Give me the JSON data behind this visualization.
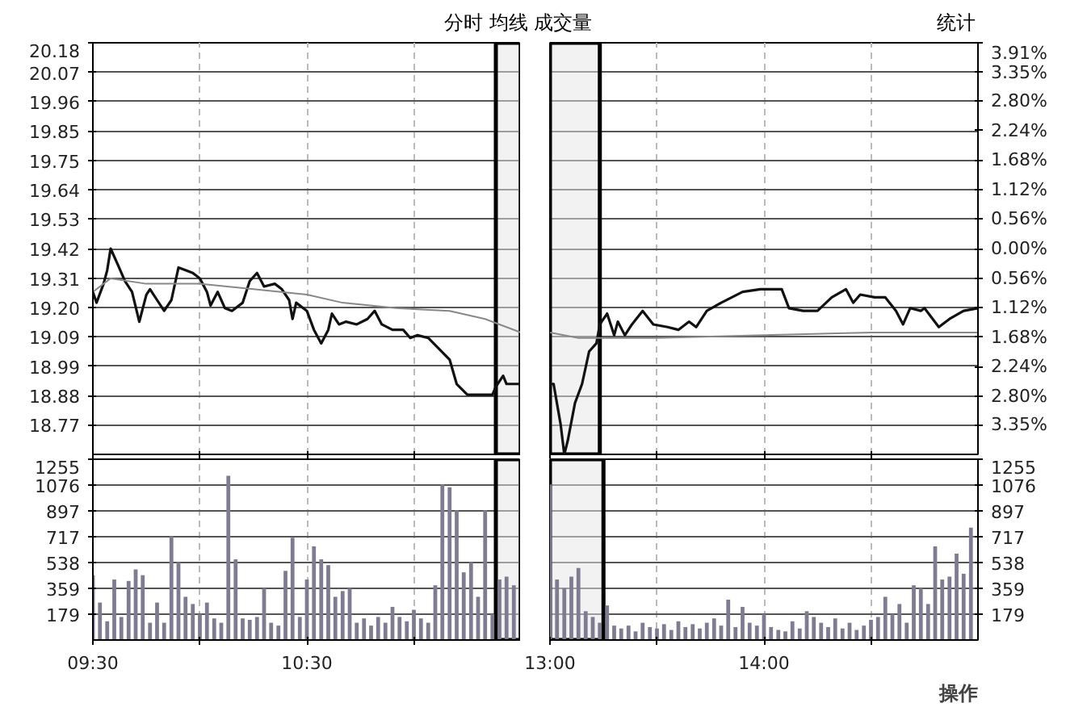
{
  "chart_data": [
    {
      "type": "line",
      "annotations": [
        "分时 均线 成交量"
      ],
      "xlim": [
        9.5,
        11.5
      ],
      "xticks": [
        {
          "value": 9.5,
          "label": null
        },
        {
          "value": 10,
          "label": null
        },
        {
          "value": 10.5,
          "label": null
        },
        {
          "value": 11,
          "label": null
        }
      ],
      "ylim": [
        18.66,
        20.18
      ],
      "yticks": [
        {
          "value": 20.18,
          "label": "20.18"
        },
        {
          "value": 20.071,
          "label": "20.07"
        },
        {
          "value": 19.963,
          "label": "19.96"
        },
        {
          "value": 19.854,
          "label": "19.85"
        },
        {
          "value": 19.746,
          "label": "19.75"
        },
        {
          "value": 19.637,
          "label": "19.64"
        },
        {
          "value": 19.529,
          "label": "19.53"
        },
        {
          "value": 19.42,
          "label": "19.42"
        },
        {
          "value": 19.311,
          "label": "19.31"
        },
        {
          "value": 19.203,
          "label": "19.20"
        },
        {
          "value": 19.094,
          "label": "19.09"
        },
        {
          "value": 18.986,
          "label": "18.99"
        },
        {
          "value": 18.877,
          "label": "18.88"
        },
        {
          "value": 18.769,
          "label": "18.77"
        }
      ],
      "tick_labels": "y",
      "grid": true,
      "bands": [
        {
          "axis": "x",
          "from": 11.383,
          "to": 11.5
        }
      ],
      "series": [
        {
          "color": "#111111",
          "x": [
            9.5,
            9.517,
            9.55,
            9.567,
            9.583,
            9.617,
            9.65,
            9.683,
            9.717,
            9.75,
            9.767,
            9.8,
            9.833,
            9.867,
            9.9,
            9.933,
            9.967,
            10,
            10.033,
            10.05,
            10.083,
            10.117,
            10.15,
            10.2,
            10.233,
            10.267,
            10.3,
            10.35,
            10.383,
            10.417,
            10.433,
            10.45,
            10.5,
            10.533,
            10.567,
            10.6,
            10.617,
            10.65,
            10.683,
            10.733,
            10.783,
            10.817,
            10.85,
            10.9,
            10.95,
            10.983,
            11.017,
            11.067,
            11.117,
            11.167,
            11.2,
            11.25,
            11.3,
            11.367,
            11.383,
            11.417,
            11.433,
            11.483,
            11.5
          ],
          "values": [
            19.26,
            19.22,
            19.29,
            19.34,
            19.42,
            19.36,
            19.3,
            19.26,
            19.15,
            19.25,
            19.27,
            19.23,
            19.19,
            19.23,
            19.35,
            19.34,
            19.33,
            19.31,
            19.26,
            19.21,
            19.26,
            19.2,
            19.19,
            19.22,
            19.3,
            19.33,
            19.28,
            19.29,
            19.27,
            19.23,
            19.16,
            19.22,
            19.19,
            19.12,
            19.07,
            19.12,
            19.18,
            19.14,
            19.15,
            19.14,
            19.16,
            19.19,
            19.14,
            19.12,
            19.12,
            19.09,
            19.1,
            19.09,
            19.05,
            19.01,
            18.92,
            18.88,
            18.88,
            18.88,
            18.91,
            18.95,
            18.92,
            18.92,
            18.92
          ]
        },
        {
          "color": "#888888",
          "x": [
            9.5,
            9.583,
            9.75,
            10,
            10.25,
            10.5,
            10.667,
            10.917,
            11.167,
            11.333,
            11.5
          ],
          "values": [
            19.26,
            19.31,
            19.29,
            19.29,
            19.27,
            19.25,
            19.22,
            19.2,
            19.19,
            19.16,
            19.11
          ]
        }
      ]
    },
    {
      "type": "line",
      "annotations": [
        "统计"
      ],
      "xlim": [
        13,
        15
      ],
      "xticks": [
        {
          "value": 13,
          "label": null
        },
        {
          "value": 13.5,
          "label": null
        },
        {
          "value": 14,
          "label": null
        },
        {
          "value": 14.5,
          "label": null
        }
      ],
      "ylim": [
        18.66,
        20.18
      ],
      "yticks": [
        {
          "value": 20.18,
          "label": null
        },
        {
          "value": 20.071,
          "label": null
        },
        {
          "value": 19.963,
          "label": null
        },
        {
          "value": 19.854,
          "label": null
        },
        {
          "value": 19.746,
          "label": null
        },
        {
          "value": 19.637,
          "label": null
        },
        {
          "value": 19.529,
          "label": null
        },
        {
          "value": 19.42,
          "label": null
        },
        {
          "value": 19.311,
          "label": null
        },
        {
          "value": 19.203,
          "label": null
        },
        {
          "value": 19.094,
          "label": null
        },
        {
          "value": 18.986,
          "label": null
        },
        {
          "value": 18.877,
          "label": null
        },
        {
          "value": 18.769,
          "label": null
        }
      ],
      "y2lim": [
        -3.91,
        3.91
      ],
      "y2ticks": [
        {
          "value": 3.91,
          "label": "3.91%"
        },
        {
          "value": 3.35,
          "label": "3.35%"
        },
        {
          "value": 2.8,
          "label": "2.80%"
        },
        {
          "value": 2.24,
          "label": "2.24%"
        },
        {
          "value": 1.68,
          "label": "1.68%"
        },
        {
          "value": 1.12,
          "label": "1.12%"
        },
        {
          "value": 0.56,
          "label": "0.56%"
        },
        {
          "value": 0,
          "label": "0.00%"
        },
        {
          "value": -0.56,
          "label": "0.56%"
        },
        {
          "value": -1.12,
          "label": "1.12%"
        },
        {
          "value": -1.68,
          "label": "1.68%"
        },
        {
          "value": -2.24,
          "label": "2.24%"
        },
        {
          "value": -2.8,
          "label": "2.80%"
        },
        {
          "value": -3.35,
          "label": "3.35%"
        }
      ],
      "tick_labels": false,
      "grid": true,
      "bands": [
        {
          "axis": "x",
          "from": 13,
          "to": 13.233
        }
      ],
      "series": [
        {
          "color": "#111111",
          "x": [
            13,
            13.017,
            13.05,
            13.067,
            13.083,
            13.117,
            13.15,
            13.183,
            13.217,
            13.233,
            13.267,
            13.3,
            13.317,
            13.35,
            13.383,
            13.433,
            13.483,
            13.55,
            13.6,
            13.65,
            13.683,
            13.733,
            13.8,
            13.9,
            13.983,
            14.083,
            14.117,
            14.183,
            14.25,
            14.317,
            14.383,
            14.417,
            14.45,
            14.517,
            14.567,
            14.617,
            14.65,
            14.683,
            14.733,
            14.75,
            14.817,
            14.867,
            14.933,
            15
          ],
          "values": [
            18.92,
            18.92,
            18.77,
            18.66,
            18.71,
            18.85,
            18.92,
            19.04,
            19.07,
            19.14,
            19.18,
            19.1,
            19.15,
            19.1,
            19.14,
            19.19,
            19.14,
            19.13,
            19.12,
            19.15,
            19.13,
            19.19,
            19.22,
            19.26,
            19.27,
            19.27,
            19.2,
            19.19,
            19.19,
            19.24,
            19.27,
            19.22,
            19.25,
            19.24,
            19.24,
            19.19,
            19.14,
            19.2,
            19.19,
            19.2,
            19.13,
            19.16,
            19.19,
            19.2
          ]
        },
        {
          "color": "#888888",
          "x": [
            13,
            13.133,
            13.5,
            14,
            14.5,
            15
          ],
          "values": [
            19.11,
            19.09,
            19.09,
            19.1,
            19.11,
            19.11
          ]
        }
      ]
    },
    {
      "type": "bar",
      "color": "#7f7b90",
      "xlim": [
        9.5,
        11.5
      ],
      "xticks": [
        {
          "value": 9.5,
          "label": "09:30"
        },
        {
          "value": 10,
          "label": null
        },
        {
          "value": 10.5,
          "label": "10:30"
        },
        {
          "value": 11,
          "label": null
        }
      ],
      "ylim": [
        0,
        1255
      ],
      "yticks": [
        179,
        359,
        538,
        717,
        897,
        1076,
        1255
      ],
      "grid": true,
      "bands": [
        {
          "axis": "x",
          "from": 11.383,
          "to": 11.5
        }
      ],
      "x": [
        9.5,
        9.533,
        9.567,
        9.6,
        9.633,
        9.667,
        9.7,
        9.733,
        9.767,
        9.8,
        9.833,
        9.867,
        9.9,
        9.933,
        9.967,
        10,
        10.033,
        10.067,
        10.1,
        10.133,
        10.167,
        10.2,
        10.233,
        10.267,
        10.3,
        10.333,
        10.367,
        10.4,
        10.433,
        10.467,
        10.5,
        10.533,
        10.567,
        10.6,
        10.633,
        10.667,
        10.7,
        10.733,
        10.767,
        10.8,
        10.833,
        10.867,
        10.9,
        10.933,
        10.967,
        11,
        11.033,
        11.067,
        11.1,
        11.133,
        11.167,
        11.2,
        11.233,
        11.267,
        11.3,
        11.333,
        11.367,
        11.4,
        11.433,
        11.467
      ],
      "values": [
        450,
        260,
        130,
        420,
        160,
        410,
        490,
        450,
        120,
        260,
        120,
        720,
        540,
        300,
        250,
        180,
        260,
        150,
        120,
        1140,
        560,
        150,
        140,
        160,
        360,
        120,
        100,
        480,
        710,
        160,
        420,
        650,
        560,
        520,
        300,
        340,
        360,
        120,
        150,
        100,
        160,
        120,
        230,
        160,
        130,
        210,
        150,
        120,
        380,
        1080,
        1060,
        900,
        470,
        540,
        300,
        900,
        180,
        420,
        440,
        380
      ]
    },
    {
      "type": "bar",
      "annotations": [
        "操作"
      ],
      "color": "#7f7b90",
      "xlim": [
        13,
        15
      ],
      "xticks": [
        {
          "value": 13,
          "label": "13:00"
        },
        {
          "value": 13.5,
          "label": null
        },
        {
          "value": 14,
          "label": "14:00"
        },
        {
          "value": 14.5,
          "label": null
        }
      ],
      "ylim": [
        0,
        1255
      ],
      "yticks": [
        179,
        359,
        538,
        717,
        897,
        1076,
        1255
      ],
      "grid": true,
      "bands": [
        {
          "axis": "x",
          "from": 13,
          "to": 13.25
        }
      ],
      "x": [
        13,
        13.033,
        13.067,
        13.1,
        13.133,
        13.167,
        13.2,
        13.233,
        13.267,
        13.3,
        13.333,
        13.367,
        13.4,
        13.433,
        13.467,
        13.5,
        13.533,
        13.567,
        13.6,
        13.633,
        13.667,
        13.7,
        13.733,
        13.767,
        13.8,
        13.833,
        13.867,
        13.9,
        13.933,
        13.967,
        14,
        14.033,
        14.067,
        14.1,
        14.133,
        14.167,
        14.2,
        14.233,
        14.267,
        14.3,
        14.333,
        14.367,
        14.4,
        14.433,
        14.467,
        14.5,
        14.533,
        14.567,
        14.6,
        14.633,
        14.667,
        14.7,
        14.733,
        14.767,
        14.8,
        14.833,
        14.867,
        14.9,
        14.933,
        14.967
      ],
      "values": [
        1080,
        420,
        360,
        440,
        500,
        200,
        160,
        120,
        240,
        100,
        80,
        100,
        60,
        120,
        90,
        80,
        110,
        70,
        130,
        90,
        110,
        80,
        120,
        150,
        100,
        280,
        90,
        230,
        120,
        100,
        180,
        90,
        70,
        60,
        130,
        80,
        200,
        160,
        120,
        90,
        150,
        80,
        120,
        70,
        100,
        140,
        160,
        300,
        180,
        250,
        120,
        380,
        360,
        250,
        650,
        420,
        440,
        600,
        460,
        780
      ]
    }
  ]
}
